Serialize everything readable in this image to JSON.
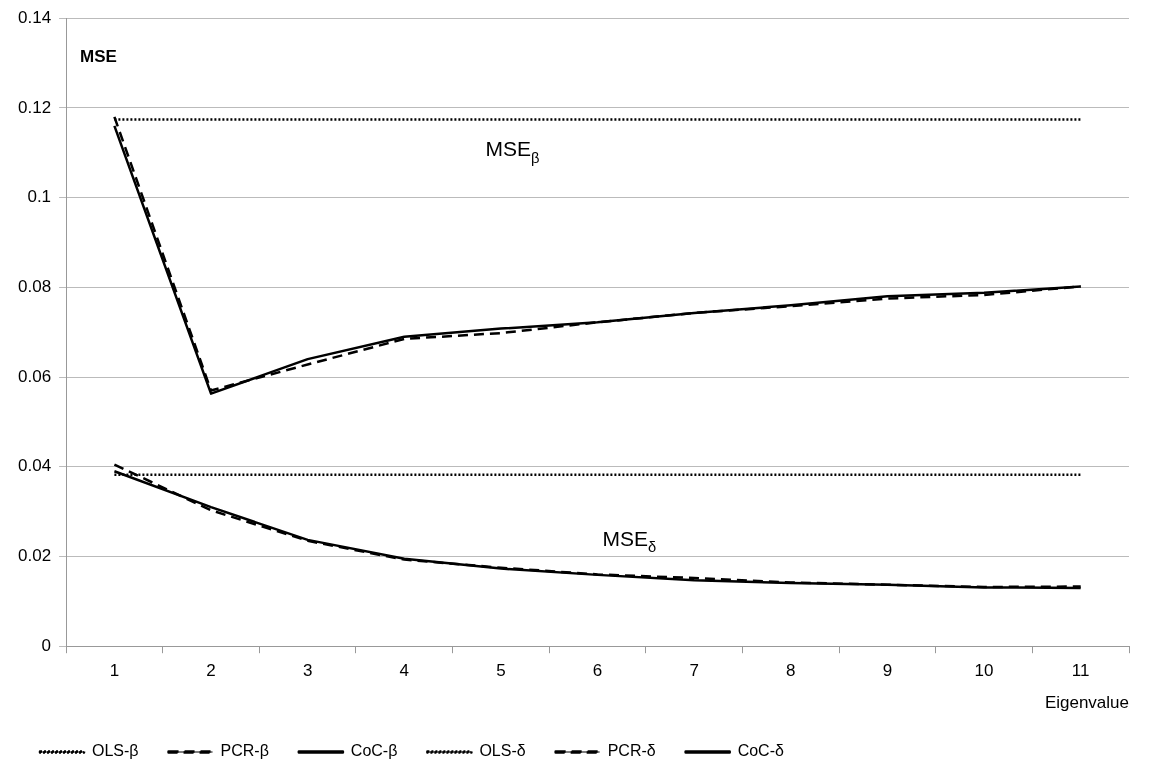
{
  "chart_data": {
    "type": "line",
    "ylabel": "MSE",
    "xlabel": "Eigenvalue",
    "categories": [
      "1",
      "2",
      "3",
      "4",
      "5",
      "6",
      "7",
      "8",
      "9",
      "10",
      "11"
    ],
    "series": [
      {
        "name": "OLS-β",
        "color": "#000000",
        "line_style": "dotted",
        "values": [
          0.1174,
          0.1174,
          0.1174,
          0.1174,
          0.1174,
          0.1174,
          0.1174,
          0.1174,
          0.1174,
          0.1174,
          0.1174
        ]
      },
      {
        "name": "PCR-β",
        "color": "#000000",
        "line_style": "dashed",
        "values": [
          0.118,
          0.057,
          0.0628,
          0.0685,
          0.0698,
          0.0722,
          0.0743,
          0.0758,
          0.0775,
          0.0783,
          0.0802
        ]
      },
      {
        "name": "CoC-β",
        "color": "#000000",
        "line_style": "solid",
        "values": [
          0.116,
          0.0563,
          0.064,
          0.069,
          0.0708,
          0.0722,
          0.0743,
          0.076,
          0.078,
          0.0788,
          0.0802
        ]
      },
      {
        "name": "OLS-δ",
        "color": "#000000",
        "line_style": "dotted",
        "values": [
          0.0382,
          0.0382,
          0.0382,
          0.0382,
          0.0382,
          0.0382,
          0.0382,
          0.0382,
          0.0382,
          0.0382,
          0.0382
        ]
      },
      {
        "name": "PCR-δ",
        "color": "#000000",
        "line_style": "dashed",
        "values": [
          0.0405,
          0.0303,
          0.0235,
          0.0193,
          0.0175,
          0.016,
          0.0152,
          0.0142,
          0.0137,
          0.0132,
          0.0133
        ]
      },
      {
        "name": "CoC-δ",
        "color": "#000000",
        "line_style": "solid",
        "values": [
          0.039,
          0.031,
          0.0237,
          0.0195,
          0.0173,
          0.0159,
          0.0147,
          0.0141,
          0.0137,
          0.0131,
          0.013
        ]
      }
    ],
    "annotations": [
      "MSE$_{β}$",
      "MSE$_{δ}$"
    ],
    "ylim": [
      0,
      0.14
    ],
    "yticks": [
      0,
      0.02,
      0.04,
      0.06,
      0.08,
      0.1,
      0.12,
      0.14
    ],
    "grid": "y",
    "legend": "bottom",
    "marker": "none"
  }
}
